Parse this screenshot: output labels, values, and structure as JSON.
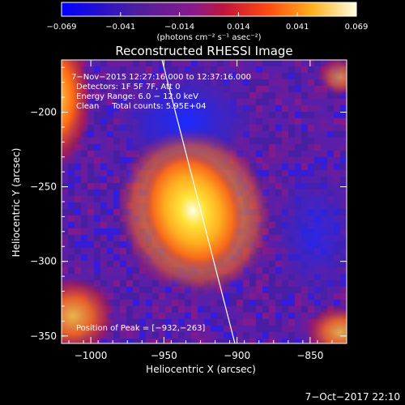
{
  "colorbar": {
    "min_label": "−0.069",
    "ticks": [
      "−0.069",
      "−0.041",
      "−0.014",
      "0.014",
      "0.041",
      "0.069"
    ],
    "units": "(photons cm⁻² s⁻¹ asec⁻²)"
  },
  "plot": {
    "title": "Reconstructed RHESSI Image",
    "xlabel": "Heliocentric X (arcsec)",
    "ylabel": "Heliocentric Y (arcsec)",
    "xticks": [
      "−1000",
      "−950",
      "−900",
      "−850"
    ],
    "yticks": [
      "−200",
      "−250",
      "−300",
      "−350"
    ],
    "x_range": [
      -1020,
      -825
    ],
    "y_range": [
      -355,
      -165
    ]
  },
  "annotations": {
    "time_range": "7−Nov−2015 12:27:16.000 to 12:37:16.000",
    "detectors": "Detectors: 1F 5F 7F, Att 0",
    "energy": "Energy Range: 6.0 − 12.0 keV",
    "clean": "Clean     Total counts: 5.95E+04",
    "peak": "Position of Peak = [−932,−263]"
  },
  "footer": {
    "timestamp": "7−Oct−2017 22:10"
  },
  "colors": {
    "background": "#000000",
    "text": "#ffffff",
    "limb_line": "#ffffff"
  },
  "colormap": [
    "#1a1aff",
    "#3b1f9e",
    "#5a1fa8",
    "#7a1a8e",
    "#a0167a",
    "#c81e3a",
    "#e8401a",
    "#ff7a10",
    "#ffb020",
    "#ffe040",
    "#ffffe8"
  ]
}
